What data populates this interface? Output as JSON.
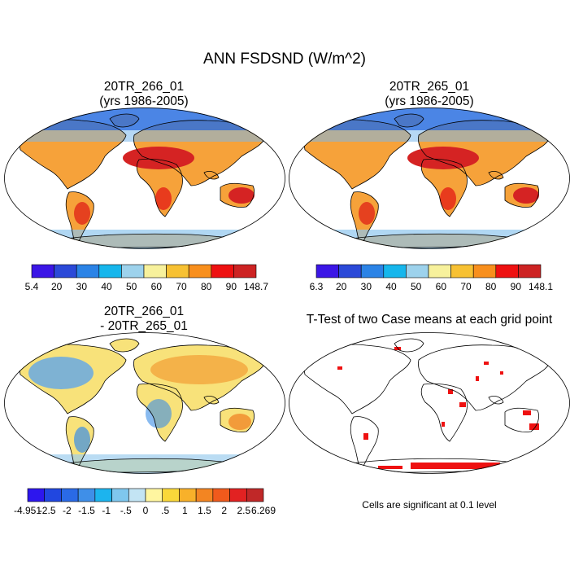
{
  "title": "ANN FSDSND (W/m^2)",
  "panels": {
    "top_left": {
      "title": "20TR_266_01",
      "subtitle": "(yrs 1986-2005)"
    },
    "top_right": {
      "title": "20TR_265_01",
      "subtitle": "(yrs 1986-2005)"
    },
    "bottom_left": {
      "title": "20TR_266_01",
      "subtitle": "- 20TR_265_01"
    },
    "bottom_right": {
      "title": "T-Test of two Case means at each grid point"
    }
  },
  "colorbars": {
    "top_left": {
      "colors": [
        "#3b16e6",
        "#2b49d8",
        "#2b83e6",
        "#16b6ec",
        "#9dd2ec",
        "#f7f19c",
        "#f7c133",
        "#f88f1d",
        "#ee1111",
        "#cd2323"
      ],
      "labels": [
        "5.4",
        "20",
        "30",
        "40",
        "50",
        "60",
        "70",
        "80",
        "90",
        "148.7"
      ]
    },
    "top_right": {
      "colors": [
        "#3b16e6",
        "#2b49d8",
        "#2b83e6",
        "#16b6ec",
        "#9dd2ec",
        "#f7f19c",
        "#f7c133",
        "#f88f1d",
        "#ee1111",
        "#cd2323"
      ],
      "labels": [
        "6.3",
        "20",
        "30",
        "40",
        "50",
        "60",
        "70",
        "80",
        "90",
        "148.1"
      ]
    },
    "bottom_left": {
      "colors": [
        "#2d16ee",
        "#2147e0",
        "#2a6ae6",
        "#3f8fe8",
        "#1cb4ee",
        "#7fc7ee",
        "#c3e4f4",
        "#fff6a0",
        "#fad83a",
        "#f8b12a",
        "#f38522",
        "#f05a1c",
        "#e22222",
        "#c02828"
      ],
      "labels": [
        "-4.951",
        "-2.5",
        "-2",
        "-1.5",
        "-1",
        "-.5",
        "0",
        ".5",
        "1",
        "1.5",
        "2",
        "2.5",
        "6.269"
      ]
    }
  },
  "legend_note": "Cells are significant at 0.1 level"
}
